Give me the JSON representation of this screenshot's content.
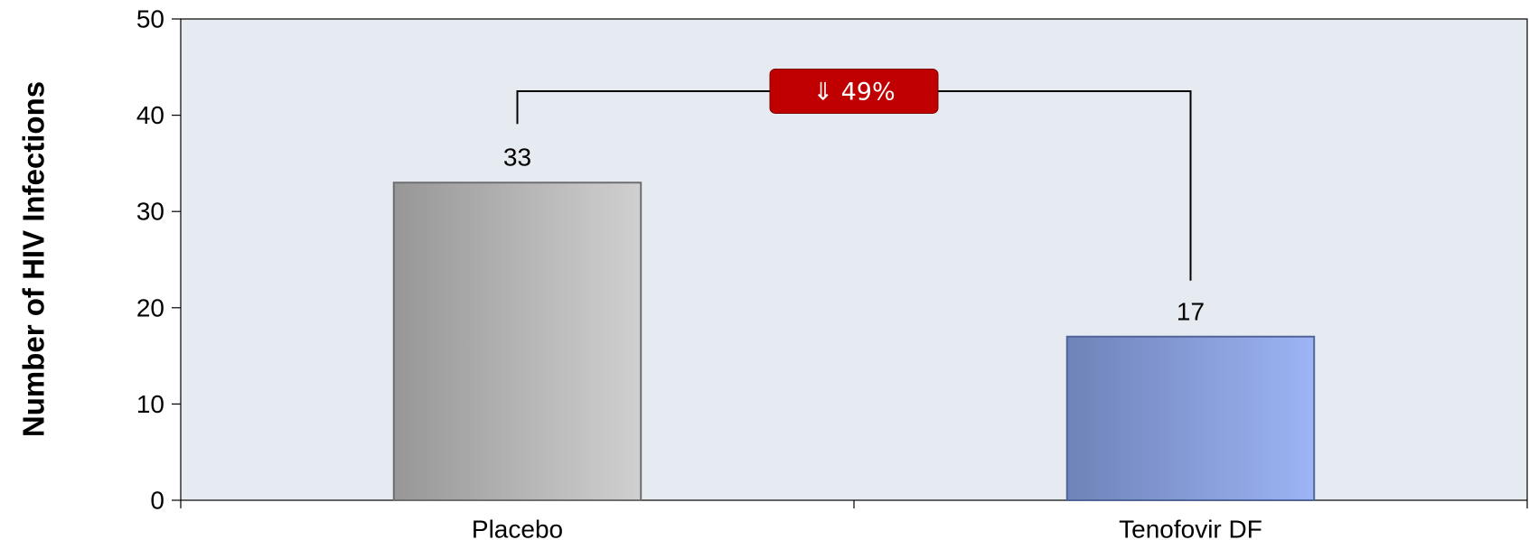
{
  "chart_data": {
    "type": "bar",
    "categories": [
      "Placebo",
      "Tenofovir DF"
    ],
    "values": [
      33,
      17
    ],
    "data_labels": [
      "33",
      "17"
    ],
    "ylabel": "Number of HIV Infections",
    "ylim": [
      0,
      50
    ],
    "yticks": [
      0,
      10,
      20,
      30,
      40,
      50
    ],
    "grid": false,
    "bar_colors": [
      "#b3b3b3",
      "#8ea4de"
    ],
    "plot_background": "#e6eaf1",
    "comparison": {
      "label": "⇓ 49%",
      "level": 42.5,
      "badge_color": "#c00000"
    }
  }
}
